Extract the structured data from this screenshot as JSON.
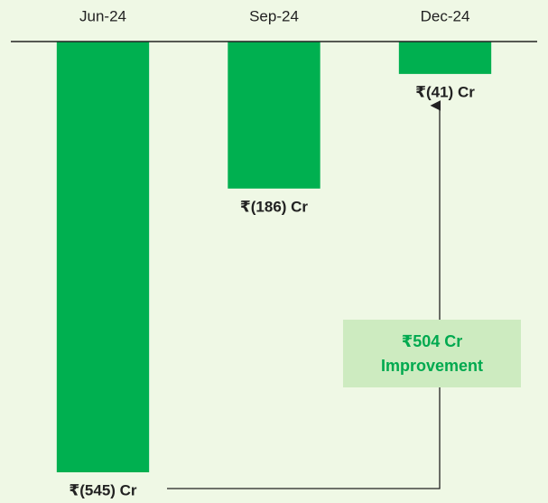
{
  "chart_data": {
    "type": "bar",
    "categories": [
      "Jun-24",
      "Sep-24",
      "Dec-24"
    ],
    "values": [
      -545,
      -186,
      -41
    ],
    "value_labels": [
      "₹(545) Cr",
      "₹(186) Cr",
      "₹(41) Cr"
    ],
    "color": "#00b050",
    "ylim": [
      -545,
      0
    ],
    "annotation": [
      "₹504 Cr",
      "Improvement"
    ]
  }
}
